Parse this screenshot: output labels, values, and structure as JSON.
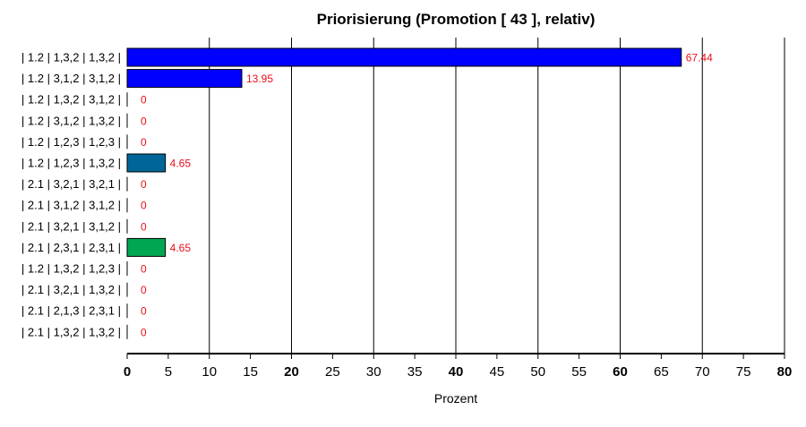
{
  "chart_data": {
    "type": "bar",
    "orientation": "horizontal",
    "title": "Priorisierung (Promotion [ 43 ], relativ)",
    "xlabel": "Prozent",
    "ylabel": "",
    "xlim": [
      0,
      80
    ],
    "x_ticks": [
      0,
      5,
      10,
      15,
      20,
      25,
      30,
      35,
      40,
      45,
      50,
      55,
      60,
      65,
      70,
      75,
      80
    ],
    "x_major_ticks": [
      0,
      20,
      40,
      60,
      80
    ],
    "vertical_grid_every": 10,
    "categories": [
      "| 1.2 | 1,3,2 | 1,3,2 |",
      "| 1.2 | 3,1,2 | 3,1,2 |",
      "| 1.2 | 1,3,2 | 3,1,2 |",
      "| 1.2 | 3,1,2 | 1,3,2 |",
      "| 1.2 | 1,2,3 | 1,2,3 |",
      "| 1.2 | 1,2,3 | 1,3,2 |",
      "| 2.1 | 3,2,1 | 3,2,1 |",
      "| 2.1 | 3,1,2 | 3,1,2 |",
      "| 2.1 | 3,2,1 | 3,1,2 |",
      "| 2.1 | 2,3,1 | 2,3,1 |",
      "| 1.2 | 1,3,2 | 1,2,3 |",
      "| 2.1 | 3,2,1 | 1,3,2 |",
      "| 2.1 | 2,1,3 | 2,3,1 |",
      "| 2.1 | 1,3,2 | 1,3,2 |"
    ],
    "values": [
      67.44,
      13.95,
      0,
      0,
      0,
      4.65,
      0,
      0,
      0,
      4.65,
      0,
      0,
      0,
      0
    ],
    "value_labels": [
      "67.44",
      "13.95",
      "0",
      "0",
      "0",
      "4.65",
      "0",
      "0",
      "0",
      "4.65",
      "0",
      "0",
      "0",
      "0"
    ],
    "bar_colors": [
      "#0000ff",
      "#0000ff",
      "#0000ff",
      "#0000ff",
      "#0000ff",
      "#006699",
      "#0000ff",
      "#0000ff",
      "#0000ff",
      "#00a651",
      "#0000ff",
      "#0000ff",
      "#0000ff",
      "#0000ff"
    ],
    "value_label_color": "#e8101b",
    "grid": true
  }
}
